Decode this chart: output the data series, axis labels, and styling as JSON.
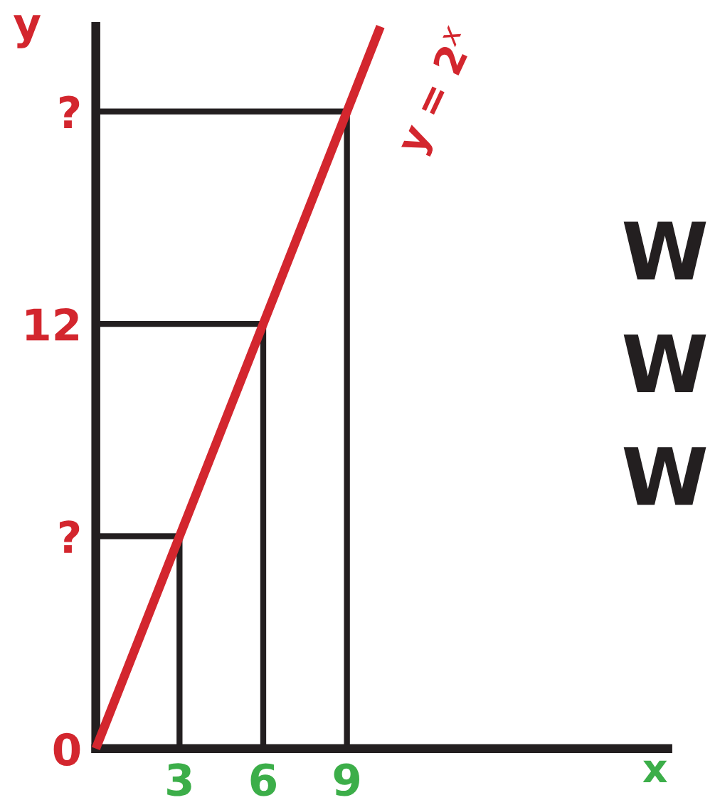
{
  "chart_data": {
    "type": "line",
    "xlabel": "x",
    "ylabel": "y",
    "x": [
      0,
      3,
      6,
      9,
      10.2
    ],
    "series": [
      {
        "color": "#d3262e",
        "values": [
          0,
          6,
          12,
          18,
          20.4
        ]
      },
      {
        "color": "#231f20",
        "x": [
          0,
          3,
          3
        ],
        "values": [
          6,
          6,
          0
        ]
      },
      {
        "color": "#231f20",
        "x": [
          0,
          6,
          6
        ],
        "values": [
          12,
          12,
          0
        ]
      },
      {
        "color": "#231f20",
        "x": [
          0,
          9,
          9
        ],
        "values": [
          18,
          18,
          0
        ]
      }
    ],
    "xlim": [
      0,
      20.5
    ],
    "ylim": [
      0,
      20.4
    ],
    "xticks": [
      3,
      6,
      9
    ],
    "yticks": [
      0,
      {
        "value": 6,
        "label": "?"
      },
      12,
      {
        "value": 18,
        "label": "?"
      }
    ],
    "grid": false,
    "marker": "none",
    "line_style": "solid",
    "annotations": [
      "y = 2$^{x}$",
      "W",
      "W",
      "W"
    ]
  }
}
